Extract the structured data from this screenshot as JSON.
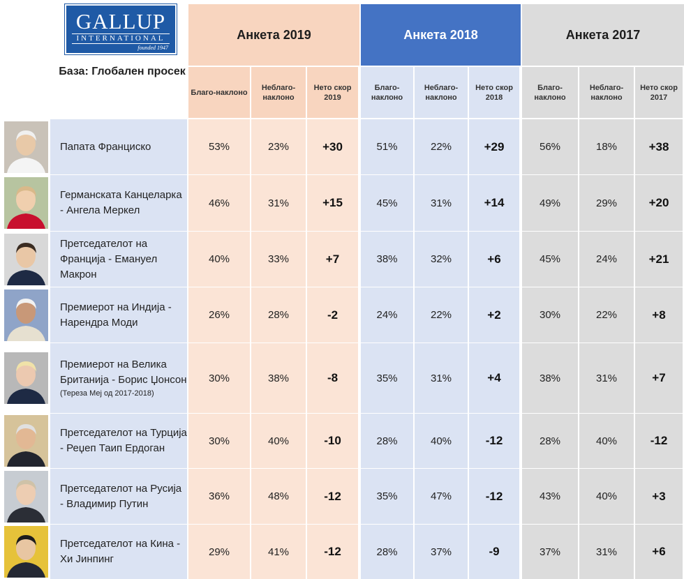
{
  "logo": {
    "name": "GALLUP",
    "sub": "INTERNATIONAL",
    "founded": "founded 1947"
  },
  "base_label": "База: Глобален просек",
  "years": [
    {
      "title": "Анкета 2019",
      "fav": "Благо-наклоно",
      "unfav": "Неблаго-наклоно",
      "net": "Нето скор 2019"
    },
    {
      "title": "Анкета 2018",
      "fav": "Благо-наклоно",
      "unfav": "Неблаго-наклоно",
      "net": "Нето скор 2018"
    },
    {
      "title": "Анкета 2017",
      "fav": "Благо-наклоно",
      "unfav": "Неблаго-наклоно",
      "net": "Нето скор 2017"
    }
  ],
  "rows": [
    {
      "name": "Папата Франциско",
      "note": "",
      "v": [
        "53%",
        "23%",
        "+30",
        "51%",
        "22%",
        "+29",
        "56%",
        "18%",
        "+38"
      ],
      "photo": "pope-francis-photo"
    },
    {
      "name": "Германската Канцеларка - Ангела Меркел",
      "note": "",
      "v": [
        "46%",
        "31%",
        "+15",
        "45%",
        "31%",
        "+14",
        "49%",
        "29%",
        "+20"
      ],
      "photo": "angela-merkel-photo"
    },
    {
      "name": "Претседателот на Франција - Емануел Макрон",
      "note": "",
      "v": [
        "40%",
        "33%",
        "+7",
        "38%",
        "32%",
        "+6",
        "45%",
        "24%",
        "+21"
      ],
      "photo": "emmanuel-macron-photo"
    },
    {
      "name": "Премиерот на Индија - Нарендра Моди",
      "note": "",
      "v": [
        "26%",
        "28%",
        "-2",
        "24%",
        "22%",
        "+2",
        "30%",
        "22%",
        "+8"
      ],
      "photo": "narendra-modi-photo"
    },
    {
      "name": "Премиерот на Велика Британија - Борис Џонсон",
      "note": "(Тереза Меј од 2017-2018)",
      "v": [
        "30%",
        "38%",
        "-8",
        "35%",
        "31%",
        "+4",
        "38%",
        "31%",
        "+7"
      ],
      "photo": "boris-johnson-photo"
    },
    {
      "name": "Претседателот на Турција - Реџеп Таип Ердоган",
      "note": "",
      "v": [
        "30%",
        "40%",
        "-10",
        "28%",
        "40%",
        "-12",
        "28%",
        "40%",
        "-12"
      ],
      "photo": "recep-erdogan-photo"
    },
    {
      "name": "Претседателот на Русија - Владимир Путин",
      "note": "",
      "v": [
        "36%",
        "48%",
        "-12",
        "35%",
        "47%",
        "-12",
        "43%",
        "40%",
        "+3"
      ],
      "photo": "vladimir-putin-photo"
    },
    {
      "name": "Претседателот на Кина - Хи Јинпинг",
      "note": "",
      "v": [
        "29%",
        "41%",
        "-12",
        "28%",
        "37%",
        "-9",
        "37%",
        "31%",
        "+6"
      ],
      "photo": "xi-jinping-photo"
    }
  ]
}
